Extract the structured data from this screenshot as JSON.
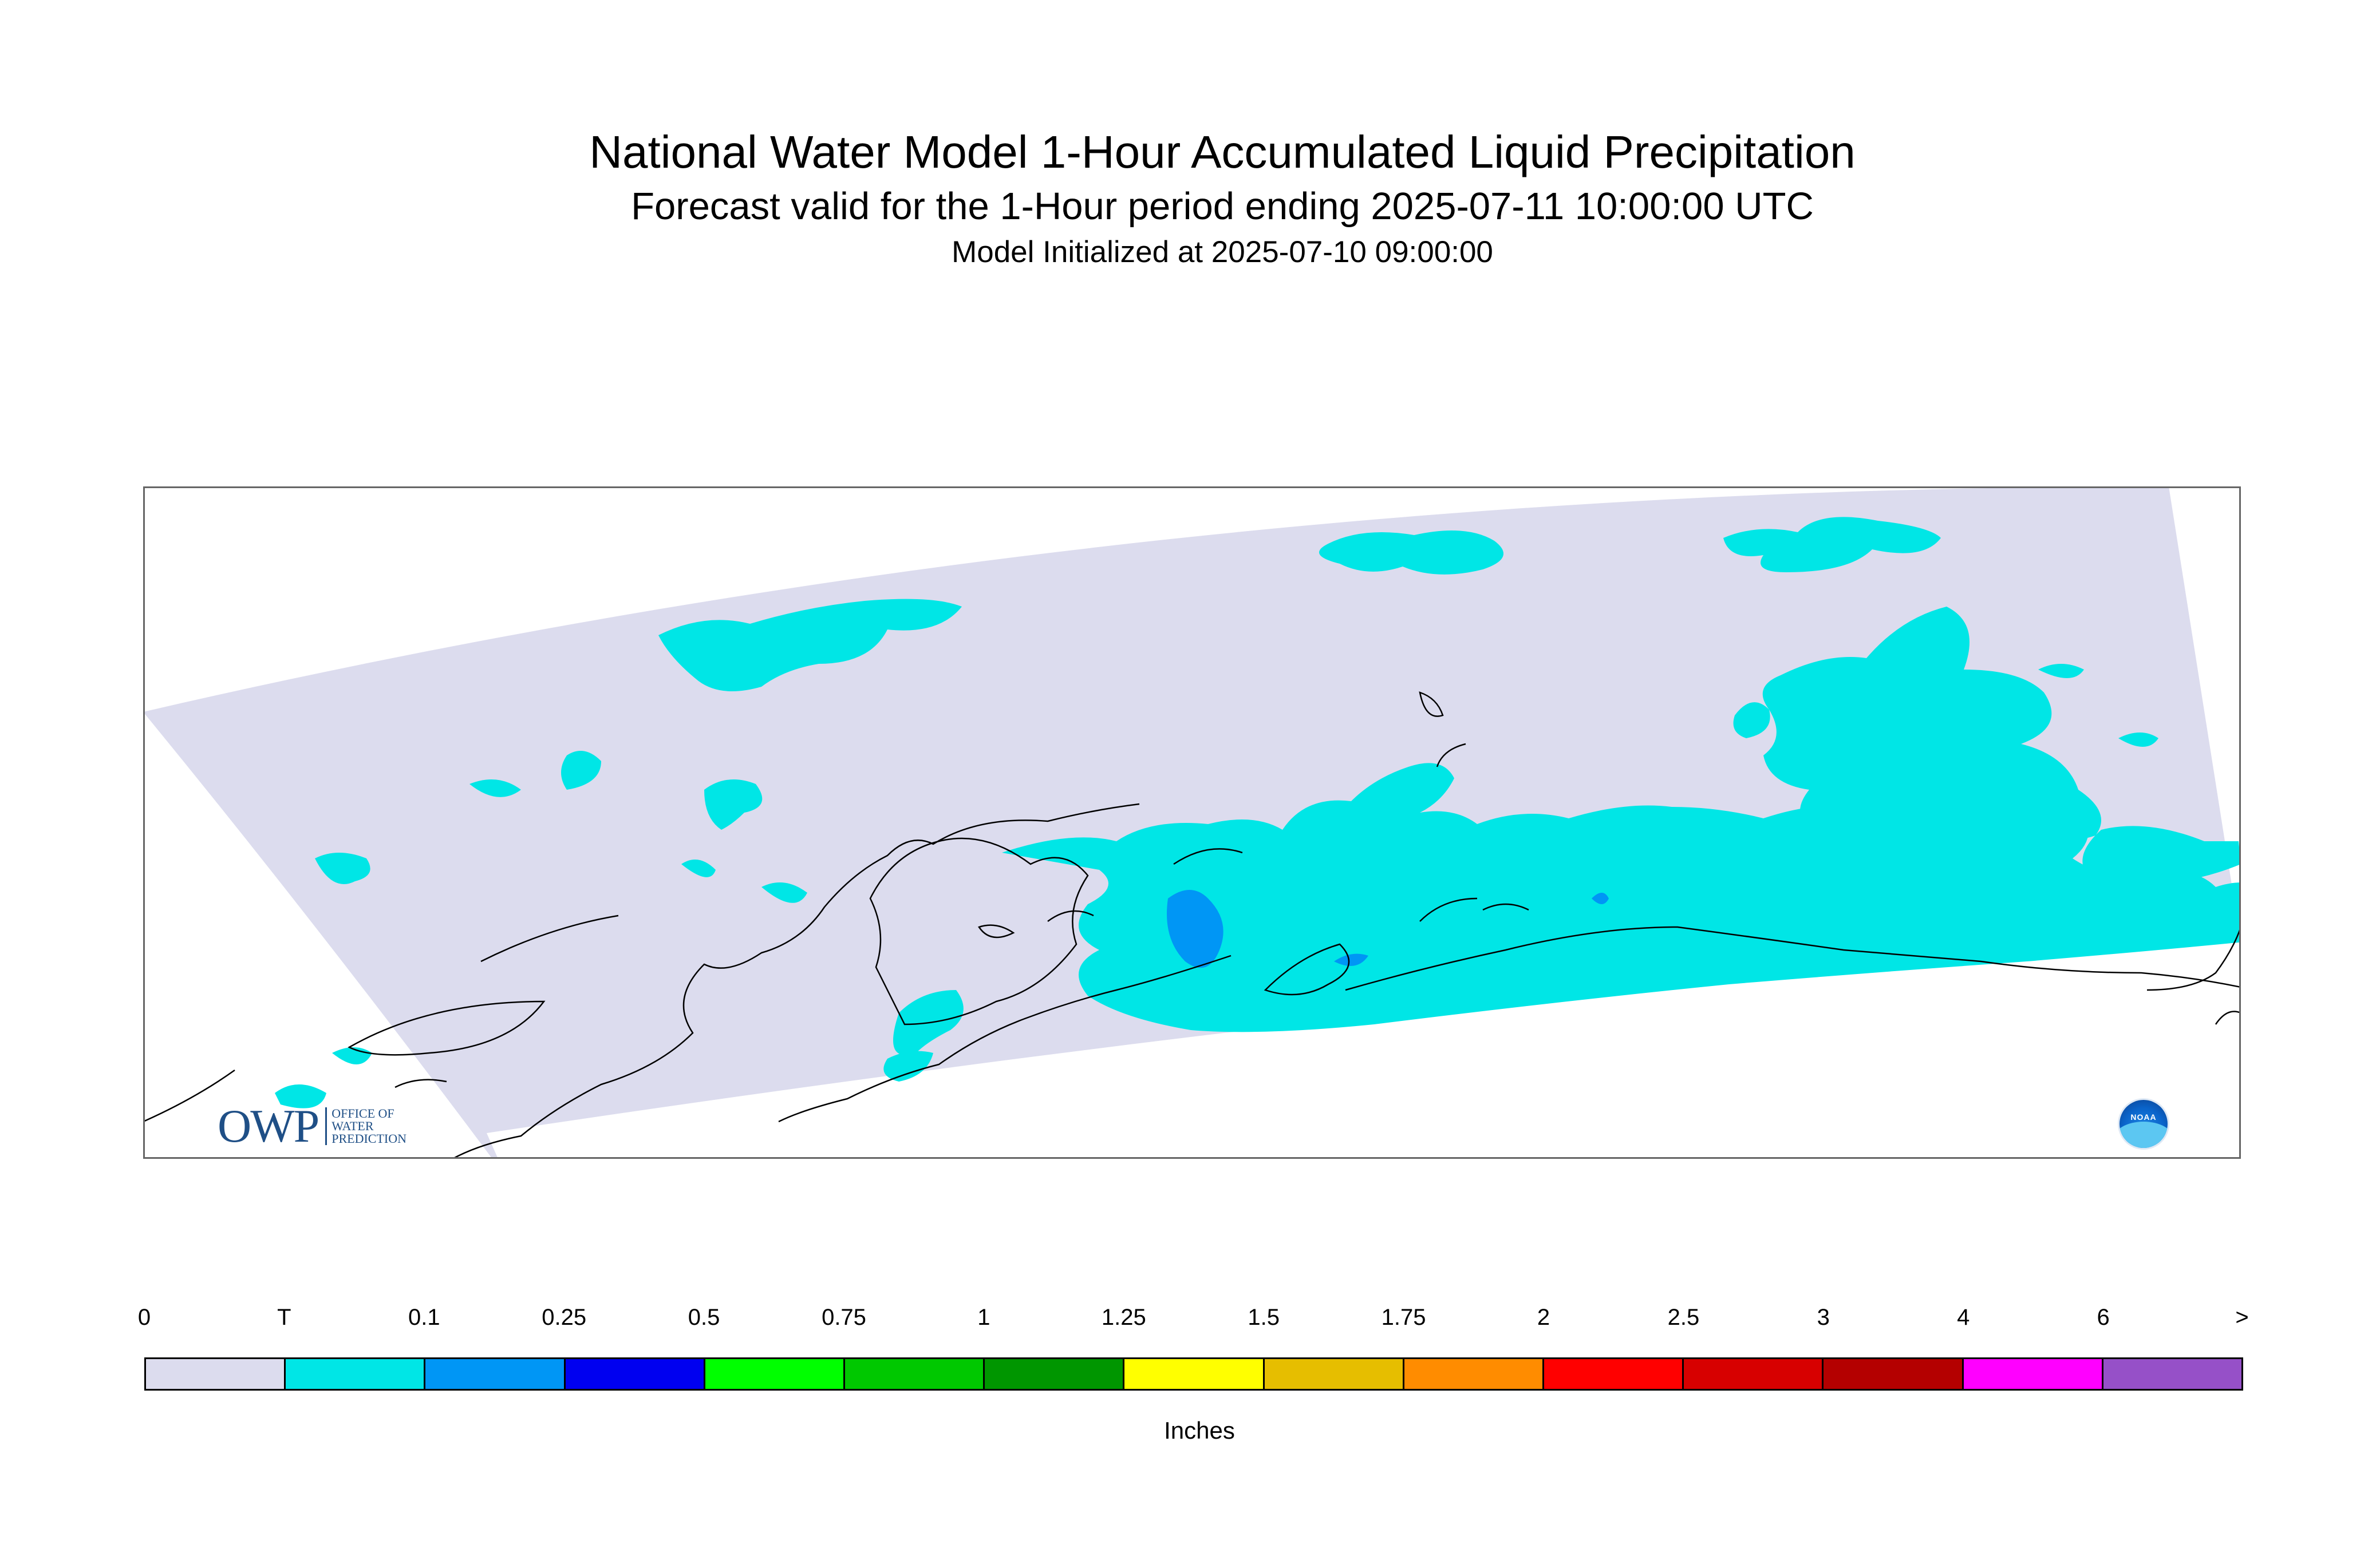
{
  "header": {
    "title": "National Water Model 1-Hour Accumulated Liquid Precipitation",
    "subtitle": "Forecast valid for the 1-Hour period ending 2025-07-11 10:00:00 UTC",
    "init": "Model Initialized at 2025-07-10 09:00:00"
  },
  "logos": {
    "owp_mark": "OWP",
    "owp_line1": "OFFICE OF",
    "owp_line2": "WATER",
    "owp_line3": "PREDICTION",
    "noaa": "NOAA"
  },
  "colors": {
    "domain": "#dcdcee",
    "trace": "#00e6e6",
    "light": "#0096f5",
    "outside": "#ffffff",
    "coast": "#000000"
  },
  "legend": {
    "units": "Inches",
    "ticks": [
      "0",
      "T",
      "0.1",
      "0.25",
      "0.5",
      "0.75",
      "1",
      "1.25",
      "1.5",
      "1.75",
      "2",
      "2.5",
      "3",
      "4",
      "6",
      ">"
    ],
    "bins": [
      "#dcdcee",
      "#00e6e6",
      "#0096f5",
      "#0000f0",
      "#00ff00",
      "#00c800",
      "#009600",
      "#ffff00",
      "#e6be00",
      "#ff8c00",
      "#ff0000",
      "#d70000",
      "#b40000",
      "#ff00ff",
      "#9650c8"
    ]
  }
}
